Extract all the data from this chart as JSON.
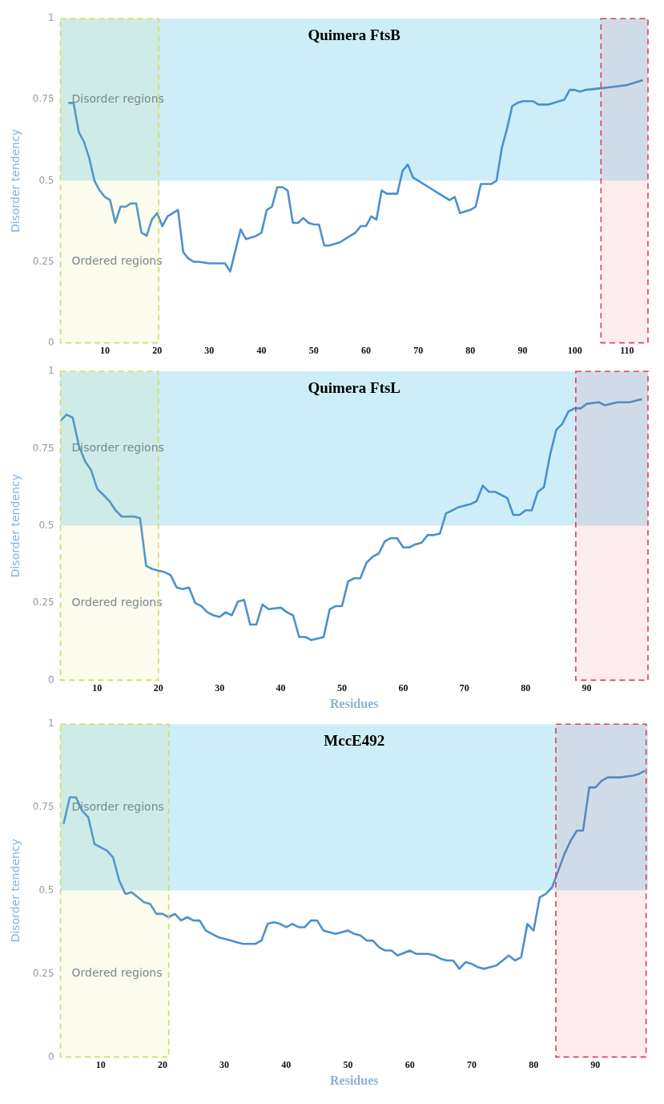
{
  "chart_data": [
    {
      "type": "line",
      "title": "Quimera FtsB",
      "ylabel": "Disorder tendency",
      "grid": false,
      "legend": false,
      "marker": "none",
      "line_style": "solid",
      "xlim": [
        1.5,
        114
      ],
      "xticks": [
        10,
        20,
        30,
        40,
        50,
        60,
        70,
        80,
        90,
        100,
        110
      ],
      "ylim": [
        0,
        1
      ],
      "yticks": [
        0,
        0.25,
        0.5,
        0.75,
        1
      ],
      "bands": [
        {
          "axis": "y",
          "from": 0.5,
          "to": 1,
          "label": "Disorder regions",
          "color": "#cdeef8"
        },
        {
          "axis": "y",
          "from": 0,
          "to": 0.5,
          "label": "Ordered regions",
          "color": "#ffffff"
        },
        {
          "axis": "x",
          "from": 1.5,
          "to": 20.3,
          "color": "#d4dc5a"
        },
        {
          "axis": "x",
          "from": 105,
          "to": 114,
          "color": "#e0405a"
        }
      ],
      "series": [
        {
          "color": "#4a90d0",
          "x": [
            3,
            4,
            5,
            6,
            7,
            8,
            9,
            10,
            11,
            12,
            13,
            14,
            15,
            16,
            17,
            18,
            19,
            20,
            21,
            22,
            23,
            24,
            25,
            26,
            27,
            28,
            30,
            32,
            33,
            34,
            36,
            37,
            39,
            40,
            41,
            42,
            43,
            44,
            45,
            46,
            47,
            48,
            49,
            50,
            51,
            52,
            53,
            55,
            57,
            58,
            59,
            60,
            61,
            62,
            63,
            64,
            66,
            67,
            68,
            69,
            70,
            72,
            74,
            76,
            77,
            78,
            80,
            81,
            82,
            84,
            85,
            86,
            87,
            88,
            89,
            90,
            92,
            93,
            95,
            96,
            98,
            99,
            100,
            101,
            102,
            105,
            110,
            113
          ],
          "values": [
            0.74,
            0.74,
            0.65,
            0.62,
            0.57,
            0.5,
            0.47,
            0.45,
            0.44,
            0.37,
            0.42,
            0.42,
            0.43,
            0.43,
            0.34,
            0.33,
            0.38,
            0.4,
            0.36,
            0.39,
            0.4,
            0.41,
            0.28,
            0.26,
            0.25,
            0.25,
            0.245,
            0.245,
            0.245,
            0.22,
            0.35,
            0.32,
            0.33,
            0.34,
            0.41,
            0.42,
            0.48,
            0.48,
            0.47,
            0.37,
            0.37,
            0.385,
            0.37,
            0.365,
            0.365,
            0.3,
            0.3,
            0.31,
            0.33,
            0.34,
            0.36,
            0.36,
            0.39,
            0.38,
            0.47,
            0.46,
            0.46,
            0.53,
            0.55,
            0.51,
            0.5,
            0.48,
            0.46,
            0.44,
            0.45,
            0.4,
            0.41,
            0.42,
            0.49,
            0.49,
            0.5,
            0.6,
            0.66,
            0.73,
            0.74,
            0.745,
            0.745,
            0.735,
            0.735,
            0.74,
            0.75,
            0.78,
            0.78,
            0.775,
            0.78,
            0.785,
            0.795,
            0.81
          ]
        }
      ]
    },
    {
      "type": "line",
      "title": "Quimera FtsL",
      "xlabel": "Residues",
      "ylabel": "Disorder tendency",
      "grid": false,
      "legend": false,
      "marker": "none",
      "line_style": "solid",
      "xlim": [
        4,
        100
      ],
      "xticks": [
        10,
        20,
        30,
        40,
        50,
        60,
        70,
        80,
        90
      ],
      "ylim": [
        0,
        1
      ],
      "yticks": [
        0,
        0.25,
        0.5,
        0.75,
        1
      ],
      "bands": [
        {
          "axis": "y",
          "from": 0.5,
          "to": 1,
          "label": "Disorder regions",
          "color": "#cdeef8"
        },
        {
          "axis": "y",
          "from": 0,
          "to": 0.5,
          "label": "Ordered regions",
          "color": "#ffffff"
        },
        {
          "axis": "x",
          "from": 4,
          "to": 20,
          "color": "#d4dc5a"
        },
        {
          "axis": "x",
          "from": 88.2,
          "to": 100,
          "color": "#e0405a"
        }
      ],
      "series": [
        {
          "color": "#4a90d0",
          "x": [
            4,
            5,
            6,
            7,
            8,
            9,
            10,
            11,
            12,
            13,
            14,
            16,
            17,
            18,
            19,
            20,
            21,
            22,
            23,
            24,
            25,
            26,
            27,
            28,
            29,
            30,
            31,
            32,
            33,
            34,
            35,
            36,
            37,
            38,
            40,
            41,
            42,
            43,
            44,
            45,
            46,
            47,
            48,
            49,
            50,
            51,
            52,
            53,
            54,
            55,
            56,
            57,
            58,
            59,
            60,
            61,
            62,
            63,
            64,
            65,
            66,
            67,
            68,
            69,
            70,
            71,
            72,
            73,
            74,
            75,
            76,
            77,
            78,
            79,
            80,
            81,
            82,
            83,
            84,
            85,
            86,
            87,
            88,
            89,
            90,
            92,
            93,
            95,
            97,
            98,
            99
          ],
          "values": [
            0.84,
            0.86,
            0.85,
            0.76,
            0.71,
            0.68,
            0.62,
            0.6,
            0.58,
            0.55,
            0.53,
            0.53,
            0.525,
            0.37,
            0.36,
            0.355,
            0.35,
            0.34,
            0.3,
            0.295,
            0.3,
            0.25,
            0.24,
            0.22,
            0.21,
            0.205,
            0.22,
            0.21,
            0.255,
            0.26,
            0.18,
            0.18,
            0.245,
            0.23,
            0.235,
            0.22,
            0.21,
            0.14,
            0.14,
            0.13,
            0.135,
            0.14,
            0.23,
            0.24,
            0.24,
            0.32,
            0.33,
            0.33,
            0.38,
            0.4,
            0.41,
            0.45,
            0.46,
            0.46,
            0.43,
            0.43,
            0.44,
            0.445,
            0.47,
            0.47,
            0.475,
            0.54,
            0.55,
            0.56,
            0.565,
            0.57,
            0.58,
            0.63,
            0.61,
            0.61,
            0.6,
            0.59,
            0.535,
            0.535,
            0.55,
            0.55,
            0.61,
            0.625,
            0.73,
            0.81,
            0.83,
            0.87,
            0.88,
            0.88,
            0.895,
            0.9,
            0.89,
            0.9,
            0.9,
            0.905,
            0.91
          ]
        }
      ]
    },
    {
      "type": "line",
      "title": "MccE492",
      "xlabel": "Residues",
      "ylabel": "Disorder tendency",
      "grid": false,
      "legend": false,
      "marker": "none",
      "line_style": "solid",
      "xlim": [
        3.5,
        98.5
      ],
      "xticks": [
        10,
        20,
        30,
        40,
        50,
        60,
        70,
        80,
        90
      ],
      "ylim": [
        0,
        1
      ],
      "yticks": [
        0,
        0.25,
        0.5,
        0.75,
        1
      ],
      "bands": [
        {
          "axis": "y",
          "from": 0.5,
          "to": 1,
          "label": "Disorder regions",
          "color": "#cdeef8"
        },
        {
          "axis": "y",
          "from": 0,
          "to": 0.5,
          "label": "Ordered regions",
          "color": "#ffffff"
        },
        {
          "axis": "x",
          "from": 3.5,
          "to": 21,
          "color": "#d4dc5a"
        },
        {
          "axis": "x",
          "from": 83.6,
          "to": 98.2,
          "color": "#e0405a"
        }
      ],
      "series": [
        {
          "color": "#4a90d0",
          "x": [
            4,
            5,
            6,
            7,
            8,
            9,
            10,
            11,
            12,
            13,
            14,
            15,
            16,
            17,
            18,
            19,
            20,
            21,
            22,
            23,
            24,
            25,
            26,
            27,
            28,
            29,
            30,
            31,
            32,
            33,
            35,
            36,
            37,
            38,
            39,
            40,
            41,
            42,
            43,
            44,
            45,
            46,
            47,
            48,
            49,
            50,
            51,
            52,
            53,
            54,
            55,
            56,
            57,
            58,
            60,
            61,
            62,
            63,
            64,
            65,
            66,
            67,
            68,
            69,
            70,
            71,
            72,
            73,
            74,
            75,
            76,
            77,
            78,
            79,
            80,
            81,
            82,
            83,
            84,
            85,
            86,
            87,
            88,
            89,
            90,
            91,
            92,
            94,
            96,
            97,
            98
          ],
          "values": [
            0.7,
            0.78,
            0.78,
            0.74,
            0.72,
            0.64,
            0.63,
            0.62,
            0.6,
            0.53,
            0.49,
            0.495,
            0.48,
            0.465,
            0.46,
            0.43,
            0.43,
            0.42,
            0.43,
            0.41,
            0.42,
            0.41,
            0.41,
            0.38,
            0.37,
            0.36,
            0.355,
            0.35,
            0.345,
            0.34,
            0.34,
            0.35,
            0.4,
            0.405,
            0.4,
            0.39,
            0.4,
            0.39,
            0.39,
            0.41,
            0.41,
            0.38,
            0.375,
            0.37,
            0.375,
            0.38,
            0.37,
            0.365,
            0.35,
            0.35,
            0.33,
            0.32,
            0.32,
            0.305,
            0.32,
            0.31,
            0.31,
            0.31,
            0.305,
            0.295,
            0.29,
            0.29,
            0.265,
            0.285,
            0.28,
            0.27,
            0.265,
            0.27,
            0.275,
            0.29,
            0.305,
            0.29,
            0.3,
            0.4,
            0.38,
            0.48,
            0.49,
            0.51,
            0.56,
            0.61,
            0.65,
            0.68,
            0.68,
            0.81,
            0.81,
            0.83,
            0.84,
            0.84,
            0.845,
            0.85,
            0.86
          ]
        }
      ]
    }
  ]
}
